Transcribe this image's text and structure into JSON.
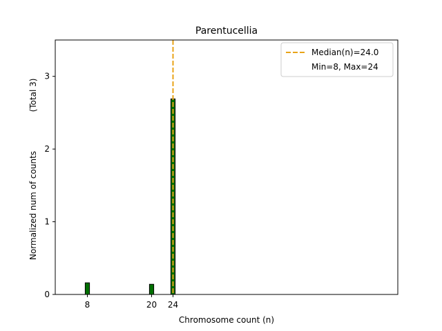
{
  "chart_data": {
    "type": "bar",
    "title": "Parentucellia",
    "xlabel": "Chromosome count (n)",
    "ylabel": "Normalized num of counts",
    "ylabel_note": "(Total 3)",
    "xlim": [
      2,
      66
    ],
    "ylim": [
      0,
      3.5
    ],
    "x_ticks": [
      8,
      20,
      24
    ],
    "y_ticks": [
      0,
      1,
      2,
      3
    ],
    "bars": [
      {
        "x": 8,
        "value": 0.16
      },
      {
        "x": 20,
        "value": 0.14
      },
      {
        "x": 24,
        "value": 2.69
      }
    ],
    "bar_width": 0.8,
    "median": {
      "x": 24.0,
      "label": "Median(n)=24.0"
    },
    "legend": {
      "position": "top-right",
      "entries": [
        "Median(n)=24.0",
        "Min=8, Max=24"
      ]
    },
    "colors": {
      "bar_fill": "#007000",
      "bar_edge": "#000000",
      "median_line": "#E8A317"
    },
    "grid": false
  }
}
